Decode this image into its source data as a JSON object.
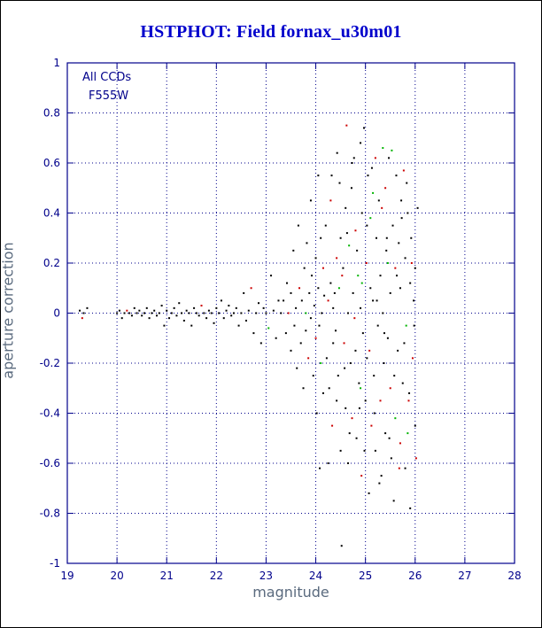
{
  "window": {
    "title": "HSTPHOT: Field fornax_u30m01"
  },
  "chart_data": {
    "type": "scatter",
    "title": "HSTPHOT: Field fornax_u30m01",
    "xlabel": "magnitude",
    "ylabel": "aperture correction",
    "xlim": [
      19,
      28
    ],
    "ylim": [
      -1,
      1
    ],
    "xticks": [
      19,
      20,
      21,
      22,
      23,
      24,
      25,
      26,
      27,
      28
    ],
    "yticks": [
      -1,
      -0.8,
      -0.6,
      -0.4,
      -0.2,
      0,
      0.2,
      0.4,
      0.6,
      0.8,
      1
    ],
    "xtick_labels": [
      "19",
      "20",
      "21",
      "22",
      "23",
      "24",
      "25",
      "26",
      "27",
      "28"
    ],
    "ytick_labels": [
      "-1",
      "-0.8",
      "-0.6",
      "-0.4",
      "-0.2",
      "0",
      "0.2",
      "0.4",
      "0.6",
      "0.8",
      "1"
    ],
    "grid": true,
    "legend_position": "none",
    "annotations": [
      {
        "text": "All CCDs"
      },
      {
        "text": "F555W"
      }
    ],
    "colors": {
      "frame": "#00008b",
      "grid": "#00008b",
      "tick_label": "#00008b",
      "title": "#0000cc",
      "axis_label": "#5a6a7e"
    },
    "palette": [
      "#000000",
      "#cc0000",
      "#00b400"
    ],
    "point_legend": [
      "black-points",
      "red-points",
      "green-points"
    ],
    "points": [
      [
        19.25,
        0.01,
        0
      ],
      [
        19.3,
        -0.02,
        1
      ],
      [
        19.33,
        0,
        0
      ],
      [
        19.4,
        0.02,
        0
      ],
      [
        20,
        0,
        0
      ],
      [
        20.05,
        0.01,
        0
      ],
      [
        20.1,
        -0.02,
        0
      ],
      [
        20.15,
        0,
        0
      ],
      [
        20.2,
        0.01,
        1
      ],
      [
        20.25,
        0,
        0
      ],
      [
        20.3,
        -0.01,
        0
      ],
      [
        20.35,
        0.02,
        0
      ],
      [
        20.4,
        0,
        0
      ],
      [
        20.45,
        0.01,
        0
      ],
      [
        20.5,
        -0.01,
        0
      ],
      [
        20.55,
        0,
        0
      ],
      [
        20.6,
        0.02,
        0
      ],
      [
        20.65,
        -0.02,
        0
      ],
      [
        20.7,
        0,
        0
      ],
      [
        20.75,
        0.01,
        0
      ],
      [
        20.8,
        -0.01,
        0
      ],
      [
        20.85,
        0,
        0
      ],
      [
        20.9,
        0.03,
        0
      ],
      [
        20.95,
        -0.05,
        0
      ],
      [
        21,
        0.01,
        0
      ],
      [
        21.05,
        -0.02,
        0
      ],
      [
        21.1,
        0,
        0
      ],
      [
        21.15,
        0.02,
        0
      ],
      [
        21.2,
        -0.01,
        0
      ],
      [
        21.25,
        0.04,
        0
      ],
      [
        21.3,
        0,
        0
      ],
      [
        21.35,
        -0.03,
        0
      ],
      [
        21.4,
        0.01,
        0
      ],
      [
        21.45,
        0,
        0
      ],
      [
        21.5,
        -0.05,
        0
      ],
      [
        21.55,
        0.02,
        0
      ],
      [
        21.6,
        0,
        0
      ],
      [
        21.65,
        -0.01,
        0
      ],
      [
        21.7,
        0.03,
        1
      ],
      [
        21.75,
        0,
        0
      ],
      [
        21.8,
        -0.02,
        0
      ],
      [
        21.85,
        0.01,
        0
      ],
      [
        21.9,
        0,
        0
      ],
      [
        21.95,
        -0.04,
        0
      ],
      [
        22,
        0.02,
        0
      ],
      [
        22.05,
        0,
        0
      ],
      [
        22.1,
        0.05,
        0
      ],
      [
        22.15,
        -0.02,
        0
      ],
      [
        22.2,
        0.01,
        0
      ],
      [
        22.25,
        0.03,
        0
      ],
      [
        22.3,
        -0.01,
        0
      ],
      [
        22.35,
        0,
        0
      ],
      [
        22.4,
        0.02,
        0
      ],
      [
        22.45,
        -0.05,
        0
      ],
      [
        22.5,
        0,
        0
      ],
      [
        22.55,
        0.08,
        0
      ],
      [
        22.6,
        -0.03,
        0
      ],
      [
        22.65,
        0.01,
        0
      ],
      [
        22.7,
        0.1,
        1
      ],
      [
        22.75,
        -0.08,
        0
      ],
      [
        22.8,
        0,
        0
      ],
      [
        22.85,
        0.04,
        0
      ],
      [
        22.9,
        -0.12,
        0
      ],
      [
        22.95,
        0.02,
        0
      ],
      [
        23,
        0,
        0
      ],
      [
        23.05,
        -0.06,
        2
      ],
      [
        23.1,
        0.15,
        0
      ],
      [
        23.15,
        0.01,
        0
      ],
      [
        23.2,
        -0.1,
        0
      ],
      [
        23.25,
        0.05,
        0
      ],
      [
        23.3,
        0,
        0
      ],
      [
        23.35,
        0.05,
        0
      ],
      [
        23.4,
        -0.08,
        0
      ],
      [
        23.42,
        0.12,
        0
      ],
      [
        23.45,
        0,
        1
      ],
      [
        23.5,
        -0.15,
        0
      ],
      [
        23.5,
        0.08,
        0
      ],
      [
        23.55,
        0.25,
        0
      ],
      [
        23.57,
        -0.05,
        0
      ],
      [
        23.6,
        0.02,
        0
      ],
      [
        23.62,
        -0.22,
        0
      ],
      [
        23.65,
        0.35,
        0
      ],
      [
        23.67,
        0.1,
        1
      ],
      [
        23.7,
        -0.12,
        0
      ],
      [
        23.72,
        0.05,
        0
      ],
      [
        23.75,
        -0.3,
        0
      ],
      [
        23.77,
        0.18,
        0
      ],
      [
        23.8,
        0,
        2
      ],
      [
        23.8,
        -0.07,
        0
      ],
      [
        23.82,
        0.28,
        0
      ],
      [
        23.85,
        -0.18,
        1
      ],
      [
        23.87,
        0.08,
        0
      ],
      [
        23.9,
        0.45,
        0
      ],
      [
        23.9,
        -0.02,
        0
      ],
      [
        23.92,
        0.15,
        0
      ],
      [
        23.95,
        -0.25,
        0
      ],
      [
        23.97,
        0.03,
        0
      ],
      [
        24,
        -0.1,
        1
      ],
      [
        24,
        0.22,
        0
      ],
      [
        24.02,
        -0.4,
        0
      ],
      [
        24.05,
        0.1,
        0
      ],
      [
        24.05,
        0.55,
        0
      ],
      [
        24.07,
        -0.05,
        0
      ],
      [
        24.08,
        -0.62,
        0
      ],
      [
        24.1,
        0.3,
        0
      ],
      [
        24.1,
        -0.2,
        2
      ],
      [
        24.12,
        0,
        0
      ],
      [
        24.15,
        -0.32,
        0
      ],
      [
        24.15,
        0.18,
        1
      ],
      [
        24.17,
        0.07,
        0
      ],
      [
        24.2,
        0.35,
        0
      ],
      [
        24.22,
        -0.18,
        0
      ],
      [
        24.25,
        0.05,
        1
      ],
      [
        24.25,
        -0.6,
        0
      ],
      [
        24.27,
        -0.3,
        0
      ],
      [
        24.3,
        0.12,
        0
      ],
      [
        24.3,
        0.45,
        1
      ],
      [
        24.32,
        0.55,
        0
      ],
      [
        24.33,
        -0.45,
        1
      ],
      [
        24.35,
        0.02,
        0
      ],
      [
        24.35,
        -0.12,
        0
      ],
      [
        24.38,
        0.08,
        0
      ],
      [
        24.4,
        -0.07,
        0
      ],
      [
        24.42,
        0.22,
        1
      ],
      [
        24.42,
        -0.35,
        0
      ],
      [
        24.43,
        0.64,
        0
      ],
      [
        24.45,
        -0.25,
        0
      ],
      [
        24.47,
        0.1,
        2
      ],
      [
        24.48,
        0.52,
        0
      ],
      [
        24.5,
        -0.55,
        0
      ],
      [
        24.5,
        0.3,
        0
      ],
      [
        24.52,
        -0.93,
        0
      ],
      [
        24.53,
        0.15,
        1
      ],
      [
        24.55,
        0.18,
        0
      ],
      [
        24.57,
        -0.12,
        1
      ],
      [
        24.58,
        -0.22,
        0
      ],
      [
        24.6,
        0.42,
        0
      ],
      [
        24.6,
        -0.38,
        0
      ],
      [
        24.62,
        0.75,
        1
      ],
      [
        24.63,
        0.32,
        0
      ],
      [
        24.65,
        0,
        0
      ],
      [
        24.65,
        -0.6,
        0
      ],
      [
        24.67,
        0.27,
        2
      ],
      [
        24.68,
        -0.48,
        0
      ],
      [
        24.7,
        -0.2,
        0
      ],
      [
        24.72,
        0.5,
        0
      ],
      [
        24.73,
        -0.42,
        1
      ],
      [
        24.73,
        0.6,
        0
      ],
      [
        24.75,
        0.08,
        0
      ],
      [
        24.77,
        0.62,
        0
      ],
      [
        24.78,
        -0.02,
        1
      ],
      [
        24.8,
        -0.15,
        0
      ],
      [
        24.8,
        0.33,
        1
      ],
      [
        24.82,
        -0.5,
        0
      ],
      [
        24.83,
        0.25,
        0
      ],
      [
        24.85,
        0.15,
        2
      ],
      [
        24.87,
        -0.28,
        0
      ],
      [
        24.88,
        -0.38,
        0
      ],
      [
        24.9,
        0.68,
        0
      ],
      [
        24.9,
        0.02,
        0
      ],
      [
        24.9,
        -0.3,
        2
      ],
      [
        24.92,
        -0.65,
        1
      ],
      [
        24.93,
        0.4,
        0
      ],
      [
        24.93,
        0.12,
        2
      ],
      [
        24.95,
        -0.08,
        0
      ],
      [
        24.97,
        0.74,
        0
      ],
      [
        24.98,
        -0.55,
        0
      ],
      [
        25,
        -0.35,
        0
      ],
      [
        25.02,
        0.2,
        1
      ],
      [
        25.03,
        -0.18,
        0
      ],
      [
        25.03,
        0.35,
        0
      ],
      [
        25.05,
        0.55,
        0
      ],
      [
        25.07,
        -0.72,
        0
      ],
      [
        25.08,
        -0.15,
        1
      ],
      [
        25.1,
        0.1,
        0
      ],
      [
        25.1,
        0.38,
        2
      ],
      [
        25.12,
        -0.45,
        1
      ],
      [
        25.13,
        0.58,
        0
      ],
      [
        25.15,
        0.05,
        0
      ],
      [
        25.15,
        0.48,
        2
      ],
      [
        25.17,
        -0.25,
        0
      ],
      [
        25.18,
        -0.4,
        0
      ],
      [
        25.2,
        0.62,
        1
      ],
      [
        25.2,
        -0.55,
        0
      ],
      [
        25.22,
        0.3,
        0
      ],
      [
        25.23,
        0.05,
        0
      ],
      [
        25.25,
        -0.05,
        0
      ],
      [
        25.27,
        0.45,
        0
      ],
      [
        25.28,
        -0.68,
        0
      ],
      [
        25.3,
        -0.35,
        1
      ],
      [
        25.3,
        0.15,
        0
      ],
      [
        25.32,
        -0.65,
        0
      ],
      [
        25.33,
        0.42,
        1
      ],
      [
        25.35,
        0.66,
        2
      ],
      [
        25.35,
        0,
        0
      ],
      [
        25.37,
        -0.2,
        0
      ],
      [
        25.38,
        -0.08,
        0
      ],
      [
        25.4,
        0.5,
        1
      ],
      [
        25.4,
        -0.48,
        0
      ],
      [
        25.42,
        0.25,
        0
      ],
      [
        25.43,
        0.3,
        0
      ],
      [
        25.45,
        -0.1,
        0
      ],
      [
        25.45,
        0.2,
        2
      ],
      [
        25.47,
        0.62,
        0
      ],
      [
        25.48,
        -0.5,
        0
      ],
      [
        25.5,
        -0.3,
        1
      ],
      [
        25.5,
        0.08,
        0
      ],
      [
        25.52,
        -0.58,
        0
      ],
      [
        25.53,
        0.65,
        2
      ],
      [
        25.55,
        0.35,
        0
      ],
      [
        25.57,
        -0.75,
        0
      ],
      [
        25.58,
        -0.25,
        0
      ],
      [
        25.6,
        0.18,
        1
      ],
      [
        25.6,
        -0.42,
        2
      ],
      [
        25.62,
        0.55,
        0
      ],
      [
        25.63,
        0.15,
        0
      ],
      [
        25.65,
        -0.15,
        0
      ],
      [
        25.67,
        0.28,
        0
      ],
      [
        25.68,
        -0.62,
        1
      ],
      [
        25.7,
        -0.52,
        1
      ],
      [
        25.7,
        0.1,
        0
      ],
      [
        25.72,
        0.45,
        0
      ],
      [
        25.73,
        0.38,
        0
      ],
      [
        25.75,
        -0.28,
        0
      ],
      [
        25.77,
        0.57,
        1
      ],
      [
        25.78,
        -0.12,
        0
      ],
      [
        25.8,
        -0.62,
        0
      ],
      [
        25.8,
        0.22,
        0
      ],
      [
        25.82,
        -0.05,
        2
      ],
      [
        25.83,
        0.52,
        0
      ],
      [
        25.85,
        0.4,
        0
      ],
      [
        25.85,
        -0.48,
        2
      ],
      [
        25.87,
        -0.35,
        1
      ],
      [
        25.88,
        -0.32,
        0
      ],
      [
        25.9,
        0.12,
        0
      ],
      [
        25.9,
        -0.78,
        0
      ],
      [
        25.92,
        0.3,
        0
      ],
      [
        25.93,
        0.2,
        1
      ],
      [
        25.95,
        -0.18,
        1
      ],
      [
        25.97,
        0.05,
        0
      ],
      [
        25.98,
        -0.05,
        0
      ],
      [
        26,
        -0.45,
        0
      ],
      [
        26,
        0.18,
        0
      ],
      [
        26.02,
        -0.58,
        1
      ],
      [
        26.05,
        0.42,
        0
      ]
    ]
  }
}
